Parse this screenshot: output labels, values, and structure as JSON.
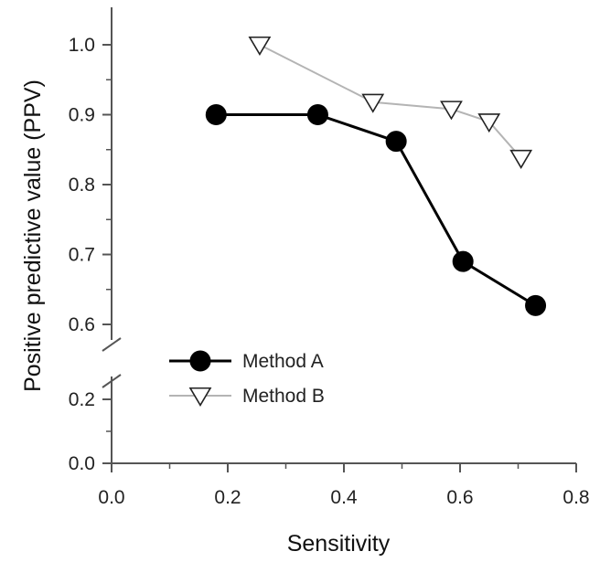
{
  "chart_data": {
    "type": "line",
    "title": "",
    "xlabel": "Sensitivity",
    "ylabel": "Positive predictive value (PPV)",
    "xlim": [
      0.0,
      0.8
    ],
    "y_axis_break": {
      "lower_segment": [
        0.0,
        0.2
      ],
      "upper_segment": [
        0.6,
        1.0
      ]
    },
    "x_ticks": [
      0.0,
      0.2,
      0.4,
      0.6,
      0.8
    ],
    "x_tick_labels": [
      "0.0",
      "0.2",
      "0.4",
      "0.6",
      "0.8"
    ],
    "y_ticks": [
      0.0,
      0.2,
      0.6,
      0.7,
      0.8,
      0.9,
      1.0
    ],
    "y_tick_labels": [
      "0.0",
      "0.2",
      "0.6",
      "0.7",
      "0.8",
      "0.9",
      "1.0"
    ],
    "grid": false,
    "legend_position": "lower-left",
    "series": [
      {
        "name": "Method A",
        "marker": "filled-circle",
        "color": "#000000",
        "x": [
          0.18,
          0.355,
          0.49,
          0.605,
          0.73
        ],
        "y": [
          0.9,
          0.9,
          0.862,
          0.69,
          0.627
        ]
      },
      {
        "name": "Method B",
        "marker": "open-triangle-down",
        "color": "#b4b4b4",
        "x": [
          0.255,
          0.45,
          0.585,
          0.65,
          0.705
        ],
        "y": [
          1.0,
          0.918,
          0.908,
          0.89,
          0.838
        ]
      }
    ]
  }
}
